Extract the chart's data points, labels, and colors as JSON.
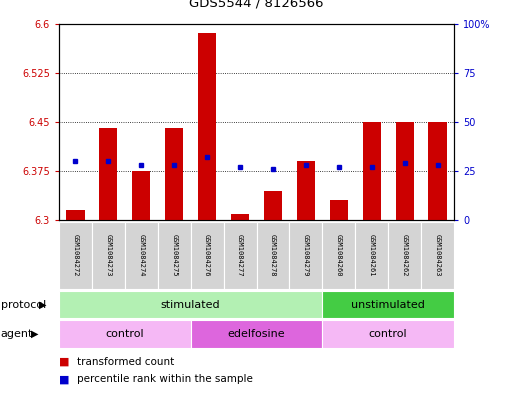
{
  "title": "GDS5544 / 8126566",
  "samples": [
    "GSM1084272",
    "GSM1084273",
    "GSM1084274",
    "GSM1084275",
    "GSM1084276",
    "GSM1084277",
    "GSM1084278",
    "GSM1084279",
    "GSM1084260",
    "GSM1084261",
    "GSM1084262",
    "GSM1084263"
  ],
  "red_tops": [
    6.315,
    6.44,
    6.375,
    6.44,
    6.585,
    6.31,
    6.345,
    6.39,
    6.33,
    6.45,
    6.45,
    6.45
  ],
  "blue_pcts": [
    30,
    30,
    28,
    28,
    32,
    27,
    26,
    28,
    27,
    27,
    29,
    28
  ],
  "base_value": 6.3,
  "ylim_left": [
    6.3,
    6.6
  ],
  "ylim_right": [
    0,
    100
  ],
  "yticks_left": [
    6.3,
    6.375,
    6.45,
    6.525,
    6.6
  ],
  "yticks_right": [
    0,
    25,
    50,
    75,
    100
  ],
  "ytick_labels_left": [
    "6.3",
    "6.375",
    "6.45",
    "6.525",
    "6.6"
  ],
  "ytick_labels_right": [
    "0",
    "25",
    "50",
    "75",
    "100%"
  ],
  "grid_lines": [
    6.375,
    6.45,
    6.525
  ],
  "bar_color": "#cc0000",
  "square_color": "#0000cc",
  "bar_width": 0.55,
  "protocol_groups": [
    {
      "label": "stimulated",
      "start": 0,
      "end": 8,
      "color": "#b3f0b3"
    },
    {
      "label": "unstimulated",
      "start": 8,
      "end": 12,
      "color": "#44cc44"
    }
  ],
  "agent_groups": [
    {
      "label": "control",
      "start": 0,
      "end": 4,
      "color": "#f5b8f5"
    },
    {
      "label": "edelfosine",
      "start": 4,
      "end": 8,
      "color": "#dd66dd"
    },
    {
      "label": "control",
      "start": 8,
      "end": 12,
      "color": "#f5b8f5"
    }
  ],
  "sample_box_color": "#d4d4d4",
  "bg_color": "#ffffff",
  "left_tick_color": "#cc0000",
  "right_tick_color": "#0000cc"
}
